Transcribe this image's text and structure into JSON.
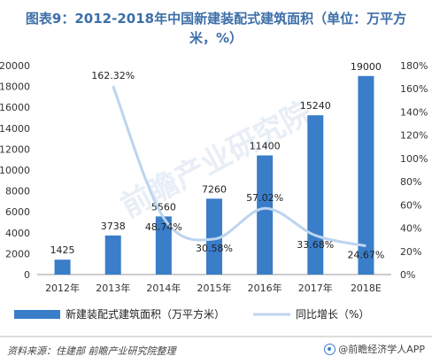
{
  "title_line1": "图表9：2012-2018年中国新建装配式建筑面积（单位：万平方",
  "title_line2": "米，%）",
  "source": "资料来源：住建部 前瞻产业研究院整理",
  "brand": "@前瞻经济学人APP",
  "watermark": "前瞻产业研究院",
  "colors": {
    "bar": "#3a7dc9",
    "line": "#bcd4ee",
    "title": "#3d6fa8"
  },
  "chart_data": {
    "type": "bar",
    "categories": [
      "2012年",
      "2013年",
      "2014年",
      "2015年",
      "2016年",
      "2017年",
      "2018E"
    ],
    "series": [
      {
        "name": "新建装配式建筑面积（万平方米）",
        "type": "bar",
        "axis": "left",
        "values": [
          1425,
          3738,
          5560,
          7260,
          11400,
          15240,
          19000
        ],
        "labels": [
          "1425",
          "3738",
          "5560",
          "7260",
          "11400",
          "15240",
          "19000"
        ]
      },
      {
        "name": "同比增长（%）",
        "type": "line",
        "axis": "right",
        "values": [
          null,
          162.32,
          48.74,
          30.58,
          57.02,
          33.68,
          24.67
        ],
        "labels": [
          "",
          "162.32%",
          "48.74%",
          "30.58%",
          "57.02%",
          "33.68%",
          "24.67%"
        ]
      }
    ],
    "y_left": {
      "min": 0,
      "max": 20000,
      "step": 2000
    },
    "y_right": {
      "min": 0,
      "max": 180,
      "step": 20,
      "suffix": "%"
    },
    "grid": false,
    "legend": "bottom"
  }
}
